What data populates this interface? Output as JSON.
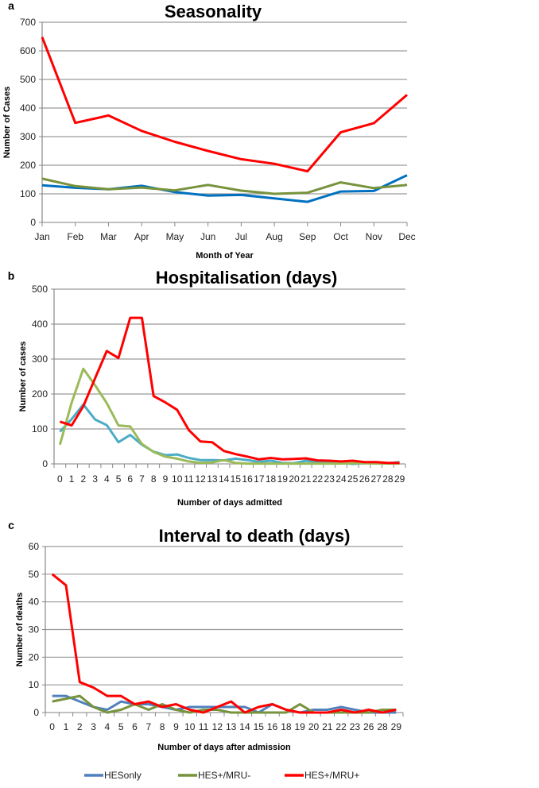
{
  "chart_data": [
    {
      "type": "line",
      "panel": "a",
      "title": "Seasonality",
      "xlabel": "Month of Year",
      "ylabel": "Number of Cases",
      "ylim": [
        0,
        700
      ],
      "yticks": [
        0,
        100,
        200,
        300,
        400,
        500,
        600,
        700
      ],
      "grid": true,
      "categories": [
        "Jan",
        "Feb",
        "Mar",
        "Apr",
        "May",
        "Jun",
        "Jul",
        "Aug",
        "Sep",
        "Oct",
        "Nov",
        "Dec"
      ],
      "series": [
        {
          "name": "HESonly",
          "color": "#0070c0",
          "values": [
            130,
            121,
            116,
            128,
            106,
            94,
            96,
            84,
            72,
            108,
            110,
            165
          ]
        },
        {
          "name": "HES+/MRU-",
          "color": "#77933c",
          "values": [
            153,
            127,
            116,
            122,
            112,
            131,
            111,
            100,
            104,
            140,
            120,
            131
          ]
        },
        {
          "name": "HES+/MRU+",
          "color": "#ff0000",
          "values": [
            648,
            348,
            374,
            320,
            282,
            250,
            221,
            205,
            179,
            315,
            347,
            446
          ]
        }
      ]
    },
    {
      "type": "line",
      "panel": "b",
      "title": "Hospitalisation (days)",
      "xlabel": "Number of days admitted",
      "ylabel": "Number of cases",
      "ylim": [
        0,
        500
      ],
      "yticks": [
        0,
        100,
        200,
        300,
        400,
        500
      ],
      "grid": true,
      "categories": [
        "0",
        "1",
        "2",
        "3",
        "4",
        "5",
        "6",
        "7",
        "8",
        "9",
        "10",
        "11",
        "12",
        "13",
        "14",
        "15",
        "16",
        "17",
        "18",
        "19",
        "20",
        "21",
        "22",
        "23",
        "24",
        "25",
        "26",
        "27",
        "28",
        "29"
      ],
      "series": [
        {
          "name": "HESonly",
          "color": "#4bacc6",
          "values": [
            92,
            128,
            170,
            127,
            111,
            62,
            83,
            55,
            35,
            25,
            27,
            17,
            11,
            11,
            10,
            15,
            11,
            6,
            9,
            3,
            2,
            9,
            5,
            3,
            3,
            0,
            2,
            3,
            2,
            5
          ]
        },
        {
          "name": "HES+/MRU-",
          "color": "#9bbb59",
          "values": [
            55,
            175,
            272,
            225,
            174,
            110,
            107,
            57,
            34,
            21,
            15,
            7,
            3,
            4,
            11,
            3,
            1,
            1,
            1,
            1,
            1,
            1,
            1,
            1,
            1,
            2,
            2,
            1,
            1,
            1
          ]
        },
        {
          "name": "HES+/MRU+",
          "color": "#ff0000",
          "values": [
            121,
            110,
            165,
            245,
            323,
            303,
            418,
            418,
            194,
            176,
            155,
            97,
            64,
            62,
            37,
            28,
            21,
            13,
            17,
            13,
            14,
            16,
            10,
            9,
            7,
            9,
            5,
            5,
            3,
            3
          ]
        }
      ]
    },
    {
      "type": "line",
      "panel": "c",
      "title": "Interval to death (days)",
      "xlabel": "Number of days after admission",
      "ylabel": "Number of deaths",
      "ylim": [
        0,
        60
      ],
      "yticks": [
        0,
        10,
        20,
        30,
        40,
        50,
        60
      ],
      "grid": true,
      "categories": [
        "0",
        "1",
        "2",
        "3",
        "4",
        "5",
        "6",
        "7",
        "8",
        "9",
        "10",
        "11",
        "12",
        "13",
        "14",
        "15",
        "16",
        "18",
        "19",
        "20",
        "21",
        "22",
        "23",
        "26",
        "28",
        "29"
      ],
      "series": [
        {
          "name": "HESonly",
          "color": "#4f81bd",
          "values": [
            6,
            6,
            4,
            2,
            1,
            4,
            3,
            3,
            2,
            1,
            2,
            2,
            2,
            2,
            2,
            0,
            3,
            1,
            0,
            1,
            1,
            2,
            1,
            0,
            0,
            0
          ]
        },
        {
          "name": "HES+/MRU-",
          "color": "#77933c",
          "values": [
            4,
            5,
            6,
            2,
            0,
            1,
            3,
            1,
            3,
            1,
            0,
            1,
            1,
            0,
            0,
            0,
            0,
            0,
            3,
            0,
            0,
            0,
            0,
            0,
            1,
            1
          ]
        },
        {
          "name": "HES+/MRU+",
          "color": "#ff0000",
          "values": [
            50,
            46,
            11,
            9,
            6,
            6,
            3,
            4,
            2,
            3,
            1,
            0,
            2,
            4,
            0,
            2,
            3,
            1,
            0,
            0,
            0,
            1,
            0,
            1,
            0,
            1
          ]
        }
      ]
    }
  ],
  "legend": [
    {
      "name": "HESonly",
      "color": "#4f81bd"
    },
    {
      "name": "HES+/MRU-",
      "color": "#77933c"
    },
    {
      "name": "HES+/MRU+",
      "color": "#ff0000"
    }
  ]
}
